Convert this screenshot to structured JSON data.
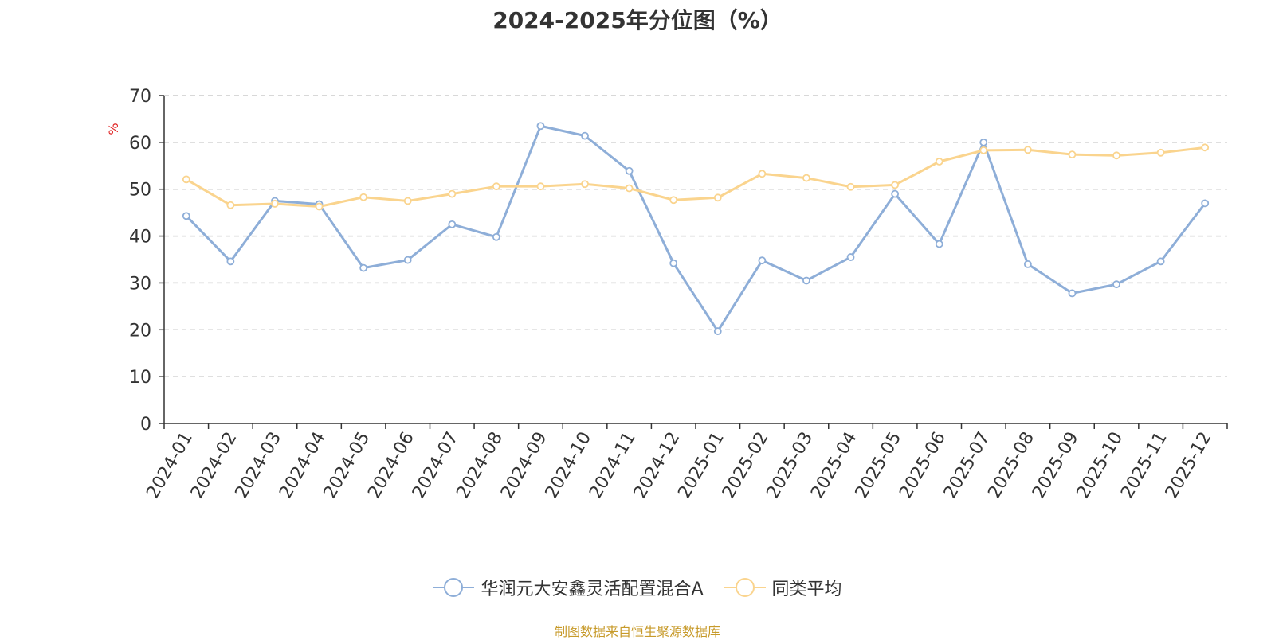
{
  "chart_data": {
    "type": "line",
    "title": "2024-2025年分位图（%）",
    "ylabel": "%",
    "xlabel": "",
    "ylim": [
      0,
      70
    ],
    "yticks": [
      0,
      10,
      20,
      30,
      40,
      50,
      60,
      70
    ],
    "grid": true,
    "legend_position": "bottom",
    "categories": [
      "2024-01",
      "2024-02",
      "2024-03",
      "2024-04",
      "2024-05",
      "2024-06",
      "2024-07",
      "2024-08",
      "2024-09",
      "2024-10",
      "2024-11",
      "2024-12",
      "2025-01",
      "2025-02",
      "2025-03",
      "2025-04",
      "2025-05",
      "2025-06",
      "2025-07",
      "2025-08",
      "2025-09",
      "2025-10",
      "2025-11",
      "2025-12"
    ],
    "series": [
      {
        "name": "华润元大安鑫灵活配置混合A",
        "color": "#8eaed8",
        "values": [
          44.3,
          34.6,
          47.5,
          46.8,
          33.2,
          34.9,
          42.5,
          39.8,
          63.5,
          61.4,
          53.9,
          34.2,
          19.7,
          34.8,
          30.5,
          35.5,
          49.0,
          38.3,
          60.0,
          34.0,
          27.8,
          29.7,
          34.6,
          47.0
        ]
      },
      {
        "name": "同类平均",
        "color": "#fad48e",
        "values": [
          52.1,
          46.6,
          46.9,
          46.3,
          48.3,
          47.5,
          49.0,
          50.6,
          50.6,
          51.1,
          50.2,
          47.7,
          48.2,
          53.3,
          52.4,
          50.5,
          50.9,
          55.9,
          58.3,
          58.4,
          57.4,
          57.2,
          57.8,
          58.9
        ]
      }
    ]
  },
  "source_note": "制图数据来自恒生聚源数据库"
}
